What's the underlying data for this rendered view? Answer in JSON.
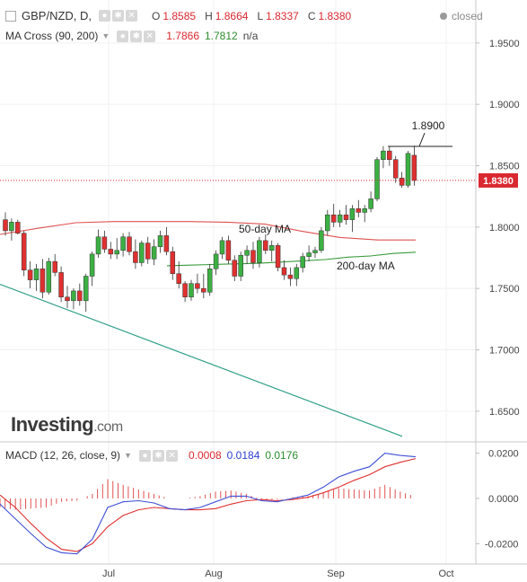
{
  "header": {
    "symbol": "GBP/NZD, D,",
    "ohlc": [
      {
        "label": "O",
        "value": "1.8585"
      },
      {
        "label": "H",
        "value": "1.8664"
      },
      {
        "label": "L",
        "value": "1.8337"
      },
      {
        "label": "C",
        "value": "1.8380"
      }
    ],
    "status": "closed",
    "ma_study": {
      "label": "MA Cross (90, 200)",
      "v1": "1.7866",
      "v2": "1.7812",
      "v3": "n/a"
    },
    "macd_study": {
      "label": "MACD (12, 26, close, 9)",
      "v1": "0.0008",
      "v2": "0.0184",
      "v3": "0.0176"
    }
  },
  "colors": {
    "up": "#3cb043",
    "down": "#e03030",
    "ma_fast": "#e05050",
    "ma_slow": "#3a9a3a",
    "trendline": "#2e9e86",
    "macd_line": "#3f4fd6",
    "signal_line": "#e03030",
    "histogram": "#e05050",
    "price_tag": "#d9282f",
    "ma_value_1": "#d9282f",
    "ma_value_2": "#2e8b2e",
    "macd_value_hist": "#d9282f",
    "macd_value_macd": "#2d3fd0",
    "macd_value_signal": "#2e8b2e"
  },
  "watermark": {
    "brand": "Investing",
    "suffix": ".com"
  },
  "chart_data": [
    {
      "type": "candlestick",
      "title": "GBP/NZD, D",
      "ylim": [
        1.625,
        1.985
      ],
      "y_ticks": [
        "1.9500",
        "1.9000",
        "1.8500",
        "1.8000",
        "1.7500",
        "1.7000",
        "1.6500"
      ],
      "x_ticks": [
        "Jul",
        "Aug",
        "Sep",
        "Oct"
      ],
      "last_price": "1.8380",
      "candles": [
        [
          1.806,
          1.812,
          1.793,
          1.797
        ],
        [
          1.797,
          1.807,
          1.789,
          1.804
        ],
        [
          1.804,
          1.806,
          1.794,
          1.795
        ],
        [
          1.795,
          1.797,
          1.76,
          1.765
        ],
        [
          1.765,
          1.772,
          1.75,
          1.757
        ],
        [
          1.757,
          1.77,
          1.748,
          1.766
        ],
        [
          1.766,
          1.774,
          1.742,
          1.747
        ],
        [
          1.747,
          1.775,
          1.745,
          1.772
        ],
        [
          1.772,
          1.778,
          1.76,
          1.763
        ],
        [
          1.763,
          1.768,
          1.739,
          1.743
        ],
        [
          1.743,
          1.752,
          1.734,
          1.74
        ],
        [
          1.74,
          1.75,
          1.733,
          1.748
        ],
        [
          1.748,
          1.754,
          1.736,
          1.74
        ],
        [
          1.74,
          1.762,
          1.731,
          1.76
        ],
        [
          1.76,
          1.78,
          1.752,
          1.778
        ],
        [
          1.778,
          1.798,
          1.775,
          1.792
        ],
        [
          1.792,
          1.797,
          1.779,
          1.782
        ],
        [
          1.782,
          1.788,
          1.774,
          1.778
        ],
        [
          1.778,
          1.791,
          1.774,
          1.781
        ],
        [
          1.781,
          1.795,
          1.776,
          1.792
        ],
        [
          1.792,
          1.796,
          1.777,
          1.78
        ],
        [
          1.78,
          1.79,
          1.766,
          1.771
        ],
        [
          1.771,
          1.789,
          1.768,
          1.787
        ],
        [
          1.787,
          1.792,
          1.77,
          1.774
        ],
        [
          1.774,
          1.79,
          1.769,
          1.784
        ],
        [
          1.784,
          1.797,
          1.779,
          1.793
        ],
        [
          1.793,
          1.8,
          1.777,
          1.78
        ],
        [
          1.78,
          1.784,
          1.757,
          1.762
        ],
        [
          1.762,
          1.772,
          1.75,
          1.754
        ],
        [
          1.754,
          1.756,
          1.739,
          1.743
        ],
        [
          1.743,
          1.757,
          1.74,
          1.754
        ],
        [
          1.754,
          1.762,
          1.746,
          1.75
        ],
        [
          1.75,
          1.762,
          1.742,
          1.747
        ],
        [
          1.747,
          1.77,
          1.744,
          1.766
        ],
        [
          1.766,
          1.781,
          1.761,
          1.778
        ],
        [
          1.778,
          1.792,
          1.774,
          1.789
        ],
        [
          1.789,
          1.793,
          1.77,
          1.773
        ],
        [
          1.773,
          1.777,
          1.756,
          1.76
        ],
        [
          1.76,
          1.78,
          1.756,
          1.777
        ],
        [
          1.777,
          1.785,
          1.77,
          1.781
        ],
        [
          1.781,
          1.788,
          1.766,
          1.771
        ],
        [
          1.771,
          1.792,
          1.767,
          1.789
        ],
        [
          1.789,
          1.794,
          1.778,
          1.781
        ],
        [
          1.781,
          1.789,
          1.772,
          1.785
        ],
        [
          1.785,
          1.787,
          1.764,
          1.767
        ],
        [
          1.767,
          1.773,
          1.757,
          1.761
        ],
        [
          1.761,
          1.767,
          1.752,
          1.758
        ],
        [
          1.758,
          1.77,
          1.752,
          1.767
        ],
        [
          1.767,
          1.779,
          1.763,
          1.776
        ],
        [
          1.776,
          1.785,
          1.772,
          1.779
        ],
        [
          1.779,
          1.784,
          1.775,
          1.781
        ],
        [
          1.781,
          1.8,
          1.779,
          1.797
        ],
        [
          1.797,
          1.814,
          1.793,
          1.81
        ],
        [
          1.81,
          1.819,
          1.8,
          1.804
        ],
        [
          1.804,
          1.814,
          1.8,
          1.81
        ],
        [
          1.81,
          1.818,
          1.802,
          1.806
        ],
        [
          1.806,
          1.818,
          1.796,
          1.815
        ],
        [
          1.815,
          1.822,
          1.808,
          1.812
        ],
        [
          1.812,
          1.818,
          1.804,
          1.815
        ],
        [
          1.815,
          1.829,
          1.812,
          1.823
        ],
        [
          1.823,
          1.857,
          1.821,
          1.855
        ],
        [
          1.855,
          1.866,
          1.848,
          1.862
        ],
        [
          1.862,
          1.866,
          1.85,
          1.855
        ],
        [
          1.855,
          1.858,
          1.836,
          1.84
        ],
        [
          1.84,
          1.845,
          1.832,
          1.834
        ],
        [
          1.834,
          1.862,
          1.832,
          1.86
        ],
        [
          1.8585,
          1.8664,
          1.8337,
          1.838
        ]
      ],
      "ma_fast": {
        "label": "50-day MA",
        "values": [
          1.794,
          1.799,
          1.8035,
          1.8045,
          1.8045,
          1.8045,
          1.804,
          1.8025,
          1.7965,
          1.7915,
          1.7895,
          1.7895
        ]
      },
      "ma_slow": {
        "label": "200-day MA",
        "values": [
          1.7685,
          1.769,
          1.7695,
          1.77,
          1.7705,
          1.7715,
          1.7725,
          1.7735,
          1.7755,
          1.7765,
          1.7785,
          1.7795
        ]
      },
      "annotation": {
        "label": "1.8900"
      }
    },
    {
      "type": "line",
      "title": "MACD (12, 26, close, 9)",
      "ylim": [
        -0.029,
        0.025
      ],
      "y_ticks": [
        "0.0200",
        "0.0000",
        "-0.0200"
      ],
      "x_ticks": [
        "Jul",
        "Aug",
        "Sep",
        "Oct"
      ],
      "series": [
        {
          "name": "MACD",
          "values": [
            -0.0025,
            -0.009,
            -0.0155,
            -0.0215,
            -0.024,
            -0.0245,
            -0.018,
            -0.004,
            -0.0015,
            -0.001,
            -0.002,
            -0.0045,
            -0.005,
            -0.004,
            -0.0015,
            0.001,
            0.001,
            -0.001,
            -0.0015,
            0.0,
            0.0015,
            0.005,
            0.0095,
            0.012,
            0.014,
            0.02,
            0.019,
            0.0184
          ]
        },
        {
          "name": "Signal",
          "values": [
            0.0015,
            -0.004,
            -0.011,
            -0.0175,
            -0.0225,
            -0.0235,
            -0.02,
            -0.0125,
            -0.0075,
            -0.005,
            -0.004,
            -0.0045,
            -0.005,
            -0.005,
            -0.0045,
            -0.0025,
            -0.001,
            -0.0005,
            -0.001,
            -0.0005,
            0.0005,
            0.0025,
            0.005,
            0.008,
            0.0105,
            0.014,
            0.016,
            0.0176
          ]
        }
      ]
    }
  ]
}
